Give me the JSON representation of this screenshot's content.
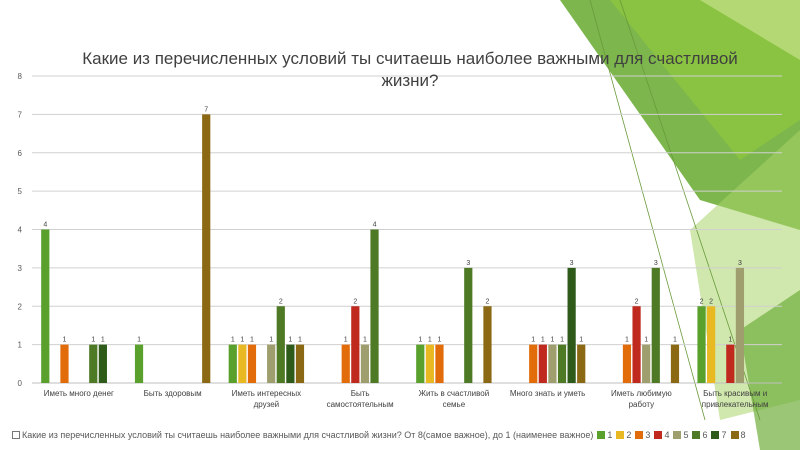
{
  "chart_data": {
    "type": "bar",
    "title": "Какие из перечисленных условий ты считаешь наиболее важными для счастливой жизни?",
    "categories": [
      [
        "Иметь много денег"
      ],
      [
        "Быть здоровым"
      ],
      [
        "Иметь интересных",
        "друзей"
      ],
      [
        "Быть",
        "самостоятельным"
      ],
      [
        "Жить в счастливой",
        "семье"
      ],
      [
        "Много знать и уметь"
      ],
      [
        "Иметь любимую",
        "работу"
      ],
      [
        "Быть красивым и",
        "привлекательным"
      ]
    ],
    "series": [
      {
        "name": "1",
        "color": "#5aa02c",
        "values": [
          4,
          1,
          1,
          0,
          1,
          0,
          0,
          2
        ]
      },
      {
        "name": "2",
        "color": "#e8b923",
        "values": [
          0,
          0,
          1,
          0,
          1,
          0,
          0,
          2
        ]
      },
      {
        "name": "3",
        "color": "#e36c0a",
        "values": [
          1,
          0,
          1,
          1,
          1,
          1,
          1,
          0
        ]
      },
      {
        "name": "4",
        "color": "#c0291e",
        "values": [
          0,
          0,
          0,
          2,
          0,
          1,
          2,
          1
        ]
      },
      {
        "name": "5",
        "color": "#9e9e6e",
        "values": [
          0,
          0,
          1,
          1,
          0,
          1,
          1,
          3
        ]
      },
      {
        "name": "6",
        "color": "#4e7a25",
        "values": [
          1,
          0,
          2,
          4,
          3,
          1,
          3,
          0
        ]
      },
      {
        "name": "7",
        "color": "#2e5b1a",
        "values": [
          1,
          0,
          1,
          0,
          0,
          3,
          0,
          0
        ]
      },
      {
        "name": "8",
        "color": "#8b6914",
        "values": [
          0,
          7,
          1,
          0,
          2,
          1,
          1,
          0
        ]
      }
    ],
    "ylim": [
      0,
      8
    ],
    "yticks": [
      "0",
      "1",
      "2",
      "3",
      "4",
      "5",
      "6",
      "7",
      "8"
    ],
    "grid": true,
    "legend_position": "bottom",
    "legend_title": "Какие из перечисленных условий ты считаешь наиболее важными для счастливой жизни? От 8(самое важное), до 1 (наименее важное)"
  }
}
